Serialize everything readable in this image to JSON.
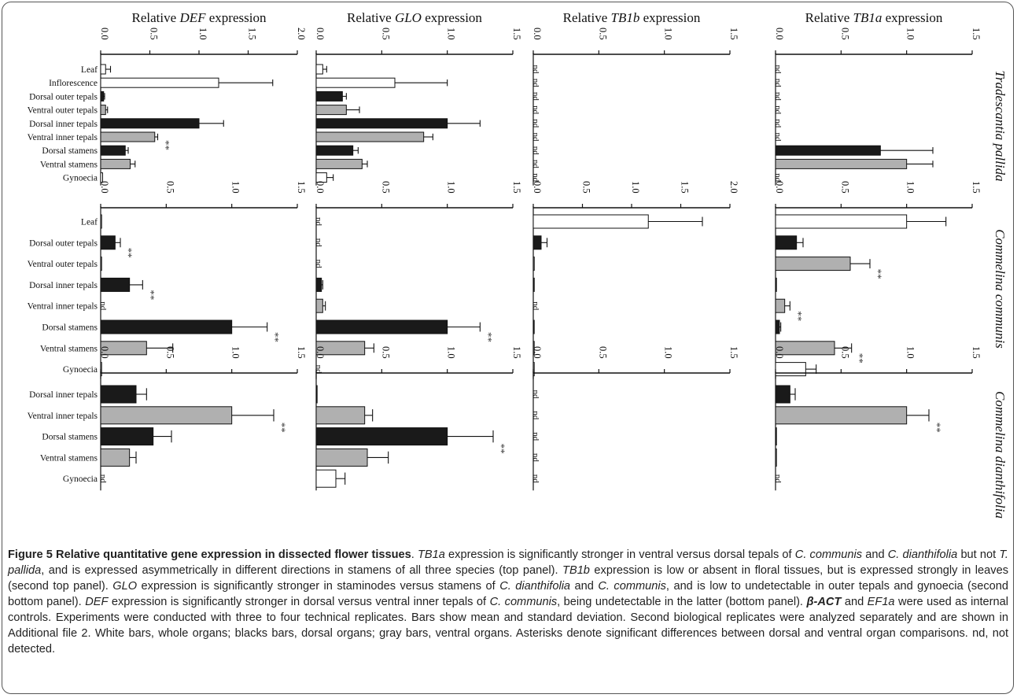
{
  "colors": {
    "white": "#ffffff",
    "black": "#1a1a1a",
    "gray": "#b0b0b0"
  },
  "caption": {
    "figure_label": "Figure 5",
    "title": "Relative quantitative gene expression in dissected flower tissues",
    "parts": [
      {
        "t": ". ",
        "s": "n"
      },
      {
        "t": "TB1a",
        "s": "i"
      },
      {
        "t": " expression is significantly stronger in ventral versus dorsal tepals of ",
        "s": "n"
      },
      {
        "t": "C. communis",
        "s": "i"
      },
      {
        "t": " and ",
        "s": "n"
      },
      {
        "t": "C. dianthifolia",
        "s": "i"
      },
      {
        "t": " but not ",
        "s": "n"
      },
      {
        "t": "T. pallida",
        "s": "i"
      },
      {
        "t": ", and is expressed asymmetrically in different directions in stamens of all three species (top panel). ",
        "s": "n"
      },
      {
        "t": "TB1b",
        "s": "i"
      },
      {
        "t": " expression is low or absent in floral tissues, but is expressed strongly in leaves (second top panel). ",
        "s": "n"
      },
      {
        "t": "GLO",
        "s": "i"
      },
      {
        "t": " expression is significantly stronger in staminodes versus stamens of ",
        "s": "n"
      },
      {
        "t": "C. dianthifolia",
        "s": "i"
      },
      {
        "t": " and ",
        "s": "n"
      },
      {
        "t": "C. communis",
        "s": "i"
      },
      {
        "t": ", and is low to undetectable in outer tepals and gynoecia (second bottom panel). ",
        "s": "n"
      },
      {
        "t": "DEF",
        "s": "i"
      },
      {
        "t": " expression is significantly stronger in dorsal versus ventral inner tepals of ",
        "s": "n"
      },
      {
        "t": "C. communis",
        "s": "i"
      },
      {
        "t": ", being undetectable in the latter (bottom panel). ",
        "s": "n"
      },
      {
        "t": "β-ACT",
        "s": "bi"
      },
      {
        "t": " and ",
        "s": "n"
      },
      {
        "t": "EF1a",
        "s": "i"
      },
      {
        "t": " were used as internal controls. Experiments were conducted with three to four technical replicates. Bars show mean and standard deviation. Second biological replicates were analyzed separately and are shown in Additional file 2. White bars, whole organs; blacks bars, dorsal organs; gray bars, ventral organs. Asterisks denote significant differences between dorsal and ventral organ comparisons. nd, not detected.",
        "s": "n"
      }
    ]
  },
  "chart_data": {
    "type": "bar",
    "orientation": "horizontal",
    "columns": [
      {
        "gene": "DEF",
        "title_prefix": "Relative ",
        "title_gene": "DEF",
        "title_suffix": " expression"
      },
      {
        "gene": "GLO",
        "title_prefix": "Relative ",
        "title_gene": "GLO",
        "title_suffix": " expression"
      },
      {
        "gene": "TB1b",
        "title_prefix": "Relative ",
        "title_gene": "TB1b",
        "title_suffix": " expression"
      },
      {
        "gene": "TB1a",
        "title_prefix": "Relative ",
        "title_gene": "TB1a",
        "title_suffix": " expression"
      }
    ],
    "species": [
      {
        "name": "Tradescantia pallida",
        "categories": [
          "Leaf",
          "Inflorescence",
          "Dorsal outer tepals",
          "Ventral outer tepals",
          "Dorsal inner tepals",
          "Ventral inner tepals",
          "Dorsal stamens",
          "Ventral stamens",
          "Gynoecia"
        ],
        "bar_colors": [
          "white",
          "white",
          "black",
          "gray",
          "black",
          "gray",
          "black",
          "gray",
          "white"
        ],
        "panels": [
          {
            "gene": "DEF",
            "xlim": [
              0,
              2.0
            ],
            "ticks": [
              "0.0",
              "0.5",
              "1.0",
              "1.5",
              "2.0"
            ],
            "values": [
              0.05,
              1.2,
              0.03,
              0.05,
              1.0,
              0.55,
              0.25,
              0.3,
              0.02
            ],
            "errors": [
              0.05,
              0.55,
              0.01,
              0.02,
              0.25,
              0.03,
              0.03,
              0.05,
              0
            ],
            "nd": [
              false,
              false,
              false,
              false,
              false,
              false,
              false,
              false,
              false
            ],
            "significant": [
              false,
              false,
              false,
              false,
              false,
              true,
              false,
              false,
              false
            ]
          },
          {
            "gene": "GLO",
            "xlim": [
              0,
              1.5
            ],
            "ticks": [
              "0.0",
              "0.5",
              "1.0",
              "1.5"
            ],
            "values": [
              0.05,
              0.6,
              0.2,
              0.23,
              1.0,
              0.82,
              0.28,
              0.35,
              0.08
            ],
            "errors": [
              0.03,
              0.4,
              0.03,
              0.1,
              0.25,
              0.07,
              0.04,
              0.04,
              0.05
            ],
            "nd": [
              false,
              false,
              false,
              false,
              false,
              false,
              false,
              false,
              false
            ],
            "significant": [
              false,
              false,
              false,
              false,
              false,
              false,
              false,
              false,
              false
            ]
          },
          {
            "gene": "TB1b",
            "xlim": [
              0,
              1.5
            ],
            "ticks": [
              "0.0",
              "0.5",
              "1.0",
              "1.5"
            ],
            "values": [
              0,
              0,
              0,
              0,
              0,
              0,
              0,
              0,
              0
            ],
            "errors": [
              0,
              0,
              0,
              0,
              0,
              0,
              0,
              0,
              0
            ],
            "nd": [
              true,
              true,
              true,
              true,
              true,
              true,
              true,
              true,
              true
            ],
            "significant": [
              false,
              false,
              false,
              false,
              false,
              false,
              false,
              false,
              false
            ]
          },
          {
            "gene": "TB1a",
            "xlim": [
              0,
              1.5
            ],
            "ticks": [
              "0.0",
              "0.5",
              "1.0",
              "1.5"
            ],
            "values": [
              0,
              0,
              0,
              0,
              0,
              0,
              0.8,
              1.0,
              0
            ],
            "errors": [
              0,
              0,
              0,
              0,
              0,
              0,
              0.4,
              0.2,
              0
            ],
            "nd": [
              true,
              true,
              true,
              true,
              true,
              true,
              false,
              false,
              true
            ],
            "significant": [
              false,
              false,
              false,
              false,
              false,
              false,
              false,
              false,
              false
            ]
          }
        ]
      },
      {
        "name": "Commelina communis",
        "categories": [
          "Leaf",
          "Dorsal outer tepals",
          "Ventral outer tepals",
          "Dorsal inner tepals",
          "Ventral inner tepals",
          "Dorsal stamens",
          "Ventral stamens",
          "Gynoecia"
        ],
        "bar_colors": [
          "white",
          "black",
          "gray",
          "black",
          "gray",
          "black",
          "gray",
          "white"
        ],
        "panels": [
          {
            "gene": "DEF",
            "xlim": [
              0,
              1.5
            ],
            "ticks": [
              "0.0",
              "0.5",
              "1.0",
              "1.5"
            ],
            "values": [
              0.005,
              0.11,
              0.005,
              0.22,
              0,
              1.0,
              0.35,
              0.005
            ],
            "errors": [
              0,
              0.04,
              0,
              0.1,
              0,
              0.27,
              0.2,
              0
            ],
            "nd": [
              false,
              false,
              false,
              false,
              true,
              false,
              false,
              false
            ],
            "significant": [
              false,
              true,
              false,
              true,
              false,
              true,
              false,
              false
            ]
          },
          {
            "gene": "GLO",
            "xlim": [
              0,
              1.5
            ],
            "ticks": [
              "0.0",
              "0.5",
              "1.0",
              "1.5"
            ],
            "values": [
              0,
              0,
              0,
              0.04,
              0.05,
              1.0,
              0.37,
              0
            ],
            "errors": [
              0,
              0,
              0,
              0.01,
              0.02,
              0.25,
              0.07,
              0
            ],
            "nd": [
              true,
              true,
              true,
              false,
              false,
              false,
              false,
              true
            ],
            "significant": [
              false,
              false,
              false,
              false,
              false,
              true,
              false,
              false
            ]
          },
          {
            "gene": "TB1b",
            "xlim": [
              0,
              2.0
            ],
            "ticks": [
              "0.0",
              "0.5",
              "1.0",
              "1.5",
              "2.0"
            ],
            "values": [
              1.17,
              0.08,
              0.01,
              0.01,
              0,
              0.005,
              0.005,
              0.005
            ],
            "errors": [
              0.55,
              0.06,
              0,
              0,
              0,
              0,
              0,
              0
            ],
            "nd": [
              false,
              false,
              false,
              false,
              true,
              false,
              false,
              false
            ],
            "significant": [
              false,
              false,
              false,
              false,
              false,
              false,
              false,
              false
            ]
          },
          {
            "gene": "TB1a",
            "xlim": [
              0,
              1.5
            ],
            "ticks": [
              "0.0",
              "0.5",
              "1.0",
              "1.5"
            ],
            "values": [
              1.0,
              0.16,
              0.57,
              0.005,
              0.07,
              0.03,
              0.45,
              0.23
            ],
            "errors": [
              0.3,
              0.05,
              0.15,
              0,
              0.04,
              0.01,
              0.13,
              0.08
            ],
            "nd": [
              false,
              false,
              false,
              false,
              false,
              false,
              false,
              false
            ],
            "significant": [
              false,
              false,
              true,
              false,
              true,
              false,
              true,
              false
            ]
          }
        ]
      },
      {
        "name": "Commelina dianthifolia",
        "categories": [
          "Dorsal inner tepals",
          "Ventral inner tepals",
          "Dorsal stamens",
          "Ventral stamens",
          "Gynoecia"
        ],
        "bar_colors": [
          "black",
          "gray",
          "black",
          "gray",
          "white"
        ],
        "panels": [
          {
            "gene": "DEF",
            "xlim": [
              0,
              1.5
            ],
            "ticks": [
              "0.0",
              "0.5",
              "1.0",
              "1.5"
            ],
            "values": [
              0.27,
              1.0,
              0.4,
              0.22,
              0
            ],
            "errors": [
              0.08,
              0.32,
              0.14,
              0.05,
              0
            ],
            "nd": [
              false,
              false,
              false,
              false,
              true
            ],
            "significant": [
              false,
              true,
              false,
              false,
              false
            ]
          },
          {
            "gene": "GLO",
            "xlim": [
              0,
              1.5
            ],
            "ticks": [
              "0.0",
              "0.5",
              "1.0",
              "1.5"
            ],
            "values": [
              0,
              0.37,
              1.0,
              0.39,
              0.15
            ],
            "errors": [
              0,
              0.06,
              0.35,
              0.16,
              0.07
            ],
            "nd": [
              false,
              false,
              false,
              false,
              false
            ],
            "significant": [
              false,
              false,
              true,
              false,
              false
            ]
          },
          {
            "gene": "TB1b",
            "xlim": [
              0,
              1.5
            ],
            "ticks": [
              "0.0",
              "0.5",
              "1.0",
              "1.5"
            ],
            "values": [
              0,
              0,
              0,
              0,
              0
            ],
            "errors": [
              0,
              0,
              0,
              0,
              0
            ],
            "nd": [
              true,
              true,
              true,
              true,
              true
            ],
            "significant": [
              false,
              false,
              false,
              false,
              false
            ]
          },
          {
            "gene": "TB1a",
            "xlim": [
              0,
              1.5
            ],
            "ticks": [
              "0.0",
              "0.5",
              "1.0",
              "1.5"
            ],
            "values": [
              0.11,
              1.0,
              0.005,
              0.005,
              0
            ],
            "errors": [
              0.04,
              0.17,
              0,
              0,
              0
            ],
            "nd": [
              false,
              false,
              false,
              false,
              true
            ],
            "significant": [
              false,
              true,
              false,
              false,
              false
            ]
          }
        ]
      }
    ],
    "nd_label": "nd",
    "significance_marker": "**"
  }
}
